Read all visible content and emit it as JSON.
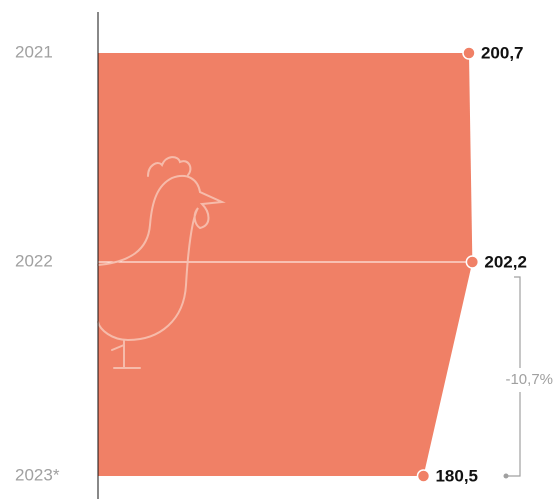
{
  "chart_data": {
    "type": "area",
    "orientation": "horizontal",
    "categories": [
      "2021",
      "2022",
      "2023*"
    ],
    "values": [
      200.7,
      202.2,
      180.5
    ],
    "value_labels": [
      "200,7",
      "202,2",
      "180,5"
    ],
    "color": "#f08066",
    "xlim": [
      36,
      238
    ],
    "annotation": "-10,7%"
  }
}
